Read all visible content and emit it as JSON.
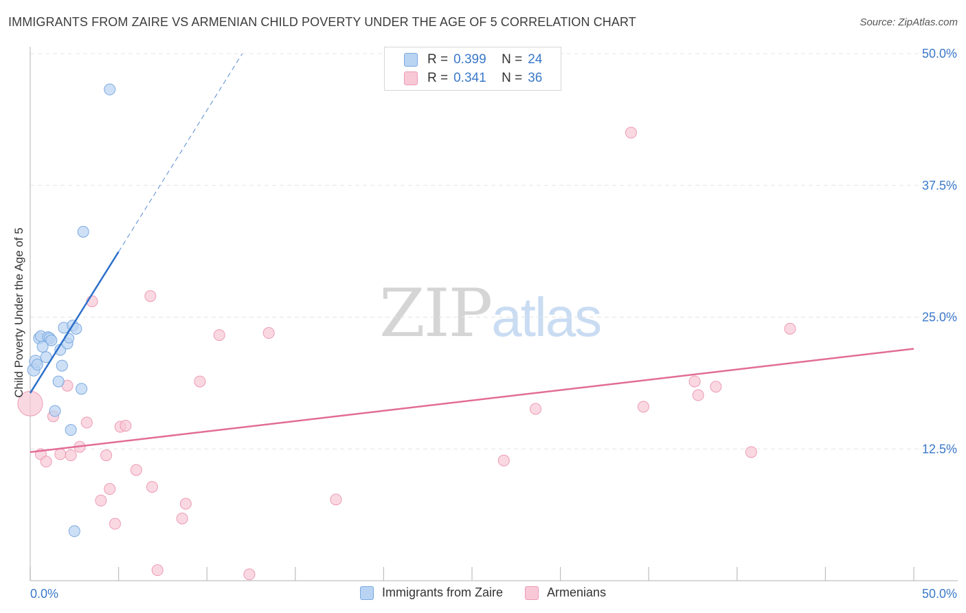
{
  "header": {
    "title": "IMMIGRANTS FROM ZAIRE VS ARMENIAN CHILD POVERTY UNDER THE AGE OF 5 CORRELATION CHART",
    "source": "Source: ZipAtlas.com"
  },
  "watermark": {
    "zip": "ZIP",
    "atlas": "atlas"
  },
  "legend": {
    "r_label": "R =",
    "n_label": "N =",
    "series": [
      {
        "name": "Immigrants from Zaire",
        "r": "0.399",
        "n": "24"
      },
      {
        "name": "Armenians",
        "r": "0.341",
        "n": "36"
      }
    ]
  },
  "colors": {
    "blue_fill": "#b9d3f2",
    "blue_stroke": "#7aa9e0",
    "blue_line": "#2c6fc9",
    "pink_fill": "#f8c8d6",
    "pink_stroke": "#ec9ab4",
    "pink_line": "#e26c96",
    "tick_text": "#3a78c9"
  },
  "chart_data": {
    "type": "scatter",
    "title": "IMMIGRANTS FROM ZAIRE VS ARMENIAN CHILD POVERTY UNDER THE AGE OF 5 CORRELATION CHART",
    "xlabel": "",
    "ylabel": "Child Poverty Under the Age of 5",
    "xlim": [
      0,
      50
    ],
    "ylim": [
      0,
      50
    ],
    "x_tick_labels": [
      "0.0%",
      "50.0%"
    ],
    "y_ticks": [
      12.5,
      25.0,
      37.5,
      50.0
    ],
    "y_tick_labels": [
      "12.5%",
      "25.0%",
      "37.5%",
      "50.0%"
    ],
    "grid": true,
    "series": [
      {
        "name": "Immigrants from Zaire",
        "r": 0.399,
        "n": 24,
        "points": [
          {
            "x": 0.2,
            "y": 20.0,
            "s": 9
          },
          {
            "x": 0.3,
            "y": 20.8,
            "s": 9
          },
          {
            "x": 0.4,
            "y": 20.5,
            "s": 8
          },
          {
            "x": 0.5,
            "y": 23.0,
            "s": 8
          },
          {
            "x": 0.6,
            "y": 23.2,
            "s": 8
          },
          {
            "x": 0.7,
            "y": 22.2,
            "s": 8
          },
          {
            "x": 0.9,
            "y": 21.2,
            "s": 8
          },
          {
            "x": 1.0,
            "y": 23.1,
            "s": 8
          },
          {
            "x": 1.1,
            "y": 23.0,
            "s": 8
          },
          {
            "x": 1.2,
            "y": 22.8,
            "s": 8
          },
          {
            "x": 1.4,
            "y": 16.1,
            "s": 8
          },
          {
            "x": 1.6,
            "y": 18.9,
            "s": 8
          },
          {
            "x": 1.7,
            "y": 21.9,
            "s": 8
          },
          {
            "x": 1.8,
            "y": 20.4,
            "s": 8
          },
          {
            "x": 1.9,
            "y": 24.0,
            "s": 8
          },
          {
            "x": 2.1,
            "y": 22.5,
            "s": 8
          },
          {
            "x": 2.3,
            "y": 14.3,
            "s": 8
          },
          {
            "x": 2.4,
            "y": 24.2,
            "s": 8
          },
          {
            "x": 2.6,
            "y": 23.9,
            "s": 8
          },
          {
            "x": 2.5,
            "y": 4.7,
            "s": 8
          },
          {
            "x": 2.9,
            "y": 18.2,
            "s": 8
          },
          {
            "x": 3.0,
            "y": 33.1,
            "s": 8
          },
          {
            "x": 4.5,
            "y": 46.6,
            "s": 8
          },
          {
            "x": 2.2,
            "y": 23.0,
            "s": 7
          }
        ],
        "trend": {
          "x0": 0.0,
          "y0": 17.8,
          "x1": 5.0,
          "y1": 31.2,
          "dash_x1": 12.0,
          "dash_y1": 50.0
        }
      },
      {
        "name": "Armenians",
        "r": 0.341,
        "n": 36,
        "points": [
          {
            "x": 0.0,
            "y": 16.8,
            "s": 18
          },
          {
            "x": 0.6,
            "y": 12.0,
            "s": 8
          },
          {
            "x": 0.9,
            "y": 11.3,
            "s": 8
          },
          {
            "x": 1.3,
            "y": 15.6,
            "s": 8
          },
          {
            "x": 1.7,
            "y": 12.0,
            "s": 8
          },
          {
            "x": 2.1,
            "y": 18.5,
            "s": 8
          },
          {
            "x": 2.3,
            "y": 11.9,
            "s": 8
          },
          {
            "x": 2.8,
            "y": 12.7,
            "s": 8
          },
          {
            "x": 3.2,
            "y": 15.0,
            "s": 8
          },
          {
            "x": 3.5,
            "y": 26.5,
            "s": 8
          },
          {
            "x": 4.0,
            "y": 7.6,
            "s": 8
          },
          {
            "x": 4.3,
            "y": 11.9,
            "s": 8
          },
          {
            "x": 4.5,
            "y": 8.7,
            "s": 8
          },
          {
            "x": 4.8,
            "y": 5.4,
            "s": 8
          },
          {
            "x": 5.1,
            "y": 14.6,
            "s": 8
          },
          {
            "x": 5.4,
            "y": 14.7,
            "s": 8
          },
          {
            "x": 6.0,
            "y": 10.5,
            "s": 8
          },
          {
            "x": 6.8,
            "y": 27.0,
            "s": 8
          },
          {
            "x": 6.9,
            "y": 8.9,
            "s": 8
          },
          {
            "x": 7.2,
            "y": 1.0,
            "s": 8
          },
          {
            "x": 8.6,
            "y": 5.9,
            "s": 8
          },
          {
            "x": 8.8,
            "y": 7.3,
            "s": 8
          },
          {
            "x": 9.6,
            "y": 18.9,
            "s": 8
          },
          {
            "x": 10.7,
            "y": 23.3,
            "s": 8
          },
          {
            "x": 12.4,
            "y": 0.6,
            "s": 8
          },
          {
            "x": 13.5,
            "y": 23.5,
            "s": 8
          },
          {
            "x": 17.3,
            "y": 7.7,
            "s": 8
          },
          {
            "x": 26.8,
            "y": 11.4,
            "s": 8
          },
          {
            "x": 28.6,
            "y": 16.3,
            "s": 8
          },
          {
            "x": 34.0,
            "y": 42.5,
            "s": 8
          },
          {
            "x": 34.7,
            "y": 16.5,
            "s": 8
          },
          {
            "x": 37.6,
            "y": 18.9,
            "s": 8
          },
          {
            "x": 37.8,
            "y": 17.6,
            "s": 8
          },
          {
            "x": 38.8,
            "y": 18.4,
            "s": 8
          },
          {
            "x": 40.8,
            "y": 12.2,
            "s": 8
          },
          {
            "x": 43.0,
            "y": 23.9,
            "s": 8
          }
        ],
        "trend": {
          "x0": 0.0,
          "y0": 12.2,
          "x1": 50.0,
          "y1": 22.0
        }
      }
    ]
  }
}
